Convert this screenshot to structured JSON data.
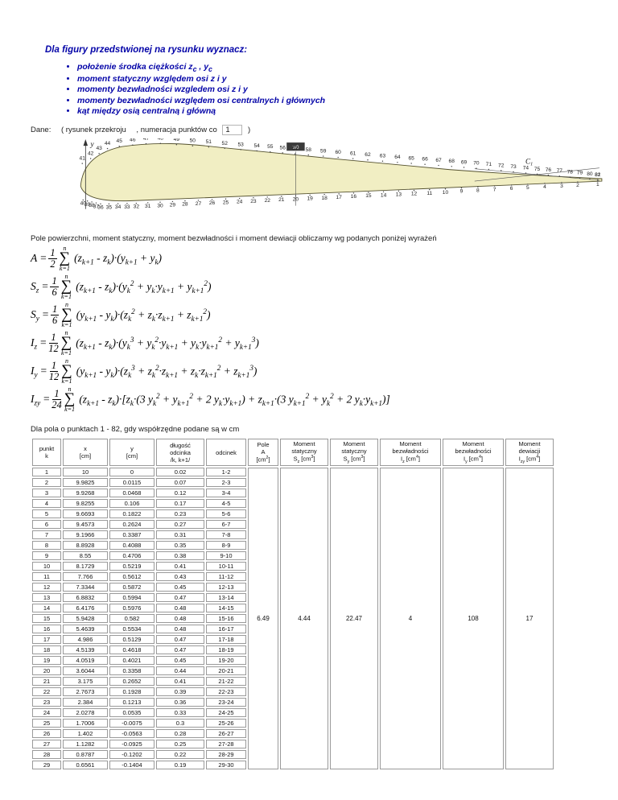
{
  "page": {
    "title": "Dla figury przedstwionej na rysunku wyznacz:",
    "bullets": [
      "położenie środka ciężkości z_{c} , y_{c}",
      "moment statyczny względem osi z i y",
      "momenty bezwładności wzgledem osi z i y",
      "momenty bezwładności względem osi centralnych i głównych",
      "kąt między osią centralną i główną"
    ],
    "dane_prefix": "Dane:",
    "dane_open": "( rysunek przekroju",
    "dane_mid": ", numeracja punktów co",
    "dane_value": "1",
    "dane_close": ")",
    "intro": "Pole powierzchni, moment statyczny, moment bezwładności i moment dewiacji obliczamy wg podanych poniżej wyrażeń",
    "table_caption": "Dla pola o punktach 1 - 82, gdy współrzędne podane są w cm"
  },
  "figure": {
    "axis_y_label": "y",
    "marker_label": "w0",
    "centroid_label": "C",
    "centroid_sub": "1",
    "bottom_count": 40,
    "top_start": 41,
    "top_end": 82
  },
  "math": {
    "sum_symbol": "∑",
    "eq": "="
  },
  "formulas": [
    {
      "lhs": "A",
      "num": "1",
      "den": "2",
      "upper": "n",
      "lower": "k=1",
      "body": "(z_{k+1} - z_{k})·(y_{k+1} + y_{k})"
    },
    {
      "lhs": "S_{z}",
      "num": "1",
      "den": "6",
      "upper": "n",
      "lower": "k=1",
      "body": "(z_{k+1} - z_{k})·(y_{k}^{2} + y_{k}·y_{k+1} + y_{k+1}^{2})"
    },
    {
      "lhs": "S_{y}",
      "num": "1",
      "den": "6",
      "upper": "n",
      "lower": "k=1",
      "body": "(y_{k+1} - y_{k})·(z_{k}^{2} + z_{k}·z_{k+1} + z_{k+1}^{2})"
    },
    {
      "lhs": "I_{z}",
      "num": "1",
      "den": "12",
      "upper": "n",
      "lower": "k=1",
      "body": "(z_{k+1} - z_{k})·(y_{k}^{3} + y_{k}^{2}·y_{k+1} + y_{k}·y_{k+1}^{2} + y_{k+1}^{3})"
    },
    {
      "lhs": "I_{y}",
      "num": "1",
      "den": "12",
      "upper": "n",
      "lower": "k=1",
      "body": "(y_{k+1} - y_{k})·(z_{k}^{3} + z_{k}^{2}·z_{k+1} + z_{k}·z_{k+1}^{2} + z_{k+1}^{3})"
    },
    {
      "lhs": "I_{zy}",
      "num": "1",
      "den": "24",
      "upper": "n",
      "lower": "k=1",
      "body": "(z_{k+1} - z_{k})·[z_{k}·(3 y_{k}^{2} + y_{k+1}^{2} + 2 y_{k}·y_{k+1}) + z_{k+1}·(3 y_{k+1}^{2} + y_{k}^{2} + 2 y_{k}·y_{k+1})]"
    }
  ],
  "table": {
    "col_headers": [
      [
        "punkt",
        "k"
      ],
      [
        "x",
        "[cm]"
      ],
      [
        "y",
        "[cm]"
      ],
      [
        "długość",
        "odcinka",
        "/k, k+1/"
      ],
      [
        "odcinek"
      ],
      [
        "Pole",
        "A",
        "[cm^{2}]"
      ],
      [
        "Moment",
        "statyczny",
        "S_{z} [cm^{3}]"
      ],
      [
        "Moment",
        "statyczny",
        "S_{y} [cm^{3}]"
      ],
      [
        "Moment",
        "bezwładności",
        "I_{z} [cm^{4}]"
      ],
      [
        "Moment",
        "bezwładności",
        "I_{y} [cm^{4}]"
      ],
      [
        "Moment",
        "dewiacji",
        "I_{zy} [cm^{4}]"
      ]
    ],
    "rows": [
      [
        "1",
        "10",
        "0",
        "0.02",
        "1-2"
      ],
      [
        "2",
        "9.9825",
        "0.0115",
        "0.07",
        "2-3"
      ],
      [
        "3",
        "9.9268",
        "0.0468",
        "0.12",
        "3-4"
      ],
      [
        "4",
        "9.8255",
        "0.106",
        "0.17",
        "4-5"
      ],
      [
        "5",
        "9.6693",
        "0.1822",
        "0.23",
        "5-6"
      ],
      [
        "6",
        "9.4573",
        "0.2624",
        "0.27",
        "6-7"
      ],
      [
        "7",
        "9.1966",
        "0.3387",
        "0.31",
        "7-8"
      ],
      [
        "8",
        "8.8928",
        "0.4088",
        "0.35",
        "8-9"
      ],
      [
        "9",
        "8.55",
        "0.4706",
        "0.38",
        "9-10"
      ],
      [
        "10",
        "8.1729",
        "0.5219",
        "0.41",
        "10-11"
      ],
      [
        "11",
        "7.766",
        "0.5612",
        "0.43",
        "11-12"
      ],
      [
        "12",
        "7.3344",
        "0.5872",
        "0.45",
        "12-13"
      ],
      [
        "13",
        "6.8832",
        "0.5994",
        "0.47",
        "13-14"
      ],
      [
        "14",
        "6.4176",
        "0.5976",
        "0.48",
        "14-15"
      ],
      [
        "15",
        "5.9428",
        "0.582",
        "0.48",
        "15-16"
      ],
      [
        "16",
        "5.4639",
        "0.5534",
        "0.48",
        "16-17"
      ],
      [
        "17",
        "4.986",
        "0.5129",
        "0.47",
        "17-18"
      ],
      [
        "18",
        "4.5139",
        "0.4618",
        "0.47",
        "18-19"
      ],
      [
        "19",
        "4.0519",
        "0.4021",
        "0.45",
        "19-20"
      ],
      [
        "20",
        "3.6044",
        "0.3358",
        "0.44",
        "20-21"
      ],
      [
        "21",
        "3.175",
        "0.2652",
        "0.41",
        "21-22"
      ],
      [
        "22",
        "2.7673",
        "0.1928",
        "0.39",
        "22-23"
      ],
      [
        "23",
        "2.384",
        "0.1213",
        "0.36",
        "23-24"
      ],
      [
        "24",
        "2.0278",
        "0.0535",
        "0.33",
        "24-25"
      ],
      [
        "25",
        "1.7006",
        "-0.0075",
        "0.3",
        "25-26"
      ],
      [
        "26",
        "1.402",
        "-0.0563",
        "0.28",
        "26-27"
      ],
      [
        "27",
        "1.1282",
        "-0.0925",
        "0.25",
        "27-28"
      ],
      [
        "28",
        "0.8787",
        "-0.1202",
        "0.22",
        "28-29"
      ],
      [
        "29",
        "0.6561",
        "-0.1404",
        "0.19",
        "29-30"
      ]
    ],
    "summary_values": [
      "6.49",
      "4.44",
      "22.47",
      "4",
      "108",
      "17"
    ]
  }
}
